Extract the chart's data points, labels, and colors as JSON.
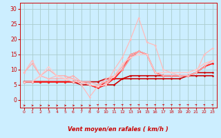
{
  "title": "",
  "xlabel": "Vent moyen/en rafales ( km/h )",
  "xlim": [
    -0.5,
    23.5
  ],
  "ylim": [
    -2.5,
    32
  ],
  "yticks": [
    0,
    5,
    10,
    15,
    20,
    25,
    30
  ],
  "xticks": [
    0,
    1,
    2,
    3,
    4,
    5,
    6,
    7,
    8,
    9,
    10,
    11,
    12,
    13,
    14,
    15,
    16,
    17,
    18,
    19,
    20,
    21,
    22,
    23
  ],
  "bg_color": "#cceeff",
  "grid_color": "#aacccc",
  "text_color": "#cc0000",
  "lines": [
    {
      "x": [
        0,
        1,
        2,
        3,
        4,
        5,
        6,
        7,
        8,
        9,
        10,
        11,
        12,
        13,
        14,
        15,
        16,
        17,
        18,
        19,
        20,
        21,
        22,
        23
      ],
      "y": [
        6,
        6,
        6,
        6,
        6,
        6,
        6,
        6,
        6,
        6,
        7,
        7,
        7,
        7,
        7,
        7,
        7,
        7,
        7,
        7,
        8,
        8,
        8,
        8
      ],
      "color": "#cc0000",
      "lw": 1.2,
      "marker": "D",
      "ms": 1.5
    },
    {
      "x": [
        0,
        1,
        2,
        3,
        4,
        5,
        6,
        7,
        8,
        9,
        10,
        11,
        12,
        13,
        14,
        15,
        16,
        17,
        18,
        19,
        20,
        21,
        22,
        23
      ],
      "y": [
        6,
        6,
        6,
        6,
        6,
        6,
        6,
        5,
        5,
        4,
        5,
        5,
        7,
        8,
        8,
        8,
        8,
        8,
        8,
        8,
        8,
        9,
        9,
        9
      ],
      "color": "#cc0000",
      "lw": 1.2,
      "marker": "D",
      "ms": 1.5
    },
    {
      "x": [
        0,
        1,
        2,
        3,
        4,
        5,
        6,
        7,
        8,
        9,
        10,
        11,
        12,
        13,
        14,
        15,
        16,
        17,
        18,
        19,
        20,
        21,
        22,
        23
      ],
      "y": [
        6,
        6,
        6,
        6,
        6,
        6,
        6,
        6,
        5,
        4,
        6,
        7,
        10,
        14,
        16,
        15,
        9,
        8,
        8,
        8,
        8,
        9,
        11,
        12
      ],
      "color": "#ff2222",
      "lw": 1.2,
      "marker": "D",
      "ms": 1.5
    },
    {
      "x": [
        0,
        1,
        2,
        3,
        4,
        5,
        6,
        7,
        8,
        9,
        10,
        11,
        12,
        13,
        14,
        15,
        16,
        17,
        18,
        19,
        20,
        21,
        22,
        23
      ],
      "y": [
        6,
        6,
        6,
        6,
        6,
        6,
        6,
        6,
        5,
        4,
        5,
        7,
        10,
        15,
        16,
        15,
        9,
        8,
        8,
        8,
        8,
        9,
        11,
        12
      ],
      "color": "#ff2222",
      "lw": 0.9,
      "marker": "D",
      "ms": 1.5
    },
    {
      "x": [
        0,
        1,
        2,
        3,
        4,
        5,
        6,
        7,
        8,
        9,
        10,
        11,
        12,
        13,
        14,
        15,
        16,
        17,
        18,
        19,
        20,
        21,
        22,
        23
      ],
      "y": [
        9,
        12,
        8,
        7,
        7,
        7,
        8,
        6,
        5,
        4.5,
        7,
        8,
        10,
        14,
        16,
        15,
        9,
        8,
        8,
        8,
        8,
        9,
        11,
        13
      ],
      "color": "#ffaaaa",
      "lw": 0.9,
      "marker": "D",
      "ms": 1.5
    },
    {
      "x": [
        0,
        1,
        2,
        3,
        4,
        5,
        6,
        7,
        8,
        9,
        10,
        11,
        12,
        13,
        14,
        15,
        16,
        17,
        18,
        19,
        20,
        21,
        22,
        23
      ],
      "y": [
        6,
        6,
        8,
        10,
        8,
        8,
        7,
        6,
        6,
        5,
        6,
        8,
        11,
        15,
        16,
        15,
        9,
        9,
        9,
        9,
        9,
        10,
        12,
        13
      ],
      "color": "#ffaaaa",
      "lw": 0.9,
      "marker": "D",
      "ms": 1.5
    },
    {
      "x": [
        0,
        1,
        2,
        3,
        4,
        5,
        6,
        7,
        8,
        9,
        10,
        11,
        12,
        13,
        14,
        15,
        16,
        17,
        18,
        19,
        20,
        21,
        22,
        23
      ],
      "y": [
        9,
        13,
        8,
        7,
        8,
        7,
        7,
        5,
        1,
        4.5,
        5,
        10,
        14,
        20,
        27,
        19,
        18,
        10,
        9,
        8,
        8,
        9,
        15,
        17
      ],
      "color": "#ffbbbb",
      "lw": 0.9,
      "marker": "D",
      "ms": 1.5
    },
    {
      "x": [
        0,
        1,
        2,
        3,
        4,
        5,
        6,
        7,
        8,
        9,
        10,
        11,
        12,
        13,
        14,
        15,
        16,
        17,
        18,
        19,
        20,
        21,
        22,
        23
      ],
      "y": [
        6,
        6,
        8,
        11,
        8,
        7,
        6,
        6,
        5,
        4.5,
        5,
        8,
        12,
        14,
        15,
        15,
        9,
        9,
        9,
        9,
        9,
        10,
        12,
        13
      ],
      "color": "#ffcccc",
      "lw": 0.9,
      "marker": "D",
      "ms": 1.5
    }
  ],
  "arrow_dir_low": [
    0,
    0,
    0,
    0,
    0,
    0,
    0,
    0,
    0
  ],
  "arrow_dir_high": [
    45,
    45,
    45,
    45,
    45,
    45,
    45,
    45,
    45,
    45,
    45,
    45,
    45,
    45,
    45
  ]
}
